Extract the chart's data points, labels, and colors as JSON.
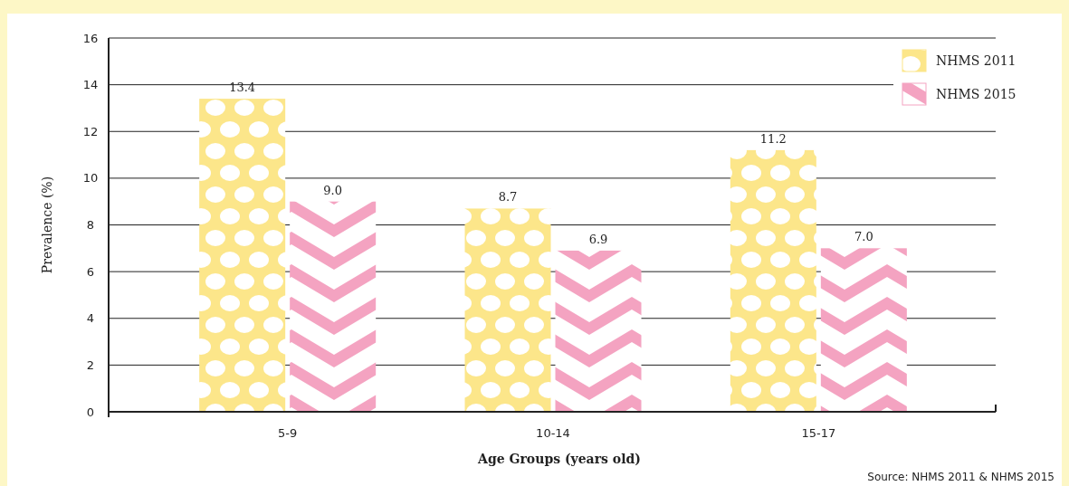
{
  "chart_data": {
    "type": "bar",
    "categories": [
      "5-9",
      "10-14",
      "15-17"
    ],
    "series": [
      {
        "name": "NHMS 2011",
        "color": "#fce68a",
        "values": [
          13.4,
          8.7,
          11.2
        ]
      },
      {
        "name": "NHMS 2015",
        "color": "#f4a3c1",
        "values": [
          9.0,
          6.9,
          7.0
        ]
      }
    ],
    "xlabel": "Age Groups (years old)",
    "ylabel": "Prevalence (%)",
    "ylim": [
      0,
      16
    ],
    "yticks": [
      0,
      2,
      4,
      6,
      8,
      10,
      12,
      14,
      16
    ],
    "grid": "y",
    "legend": "top right",
    "value_labels": [
      [
        "13.4",
        "8.7",
        "11.2"
      ],
      [
        "9.0",
        "6.9",
        "7.0"
      ]
    ],
    "annotations": [
      "Source: NHMS 2011 & NHMS 2015"
    ]
  }
}
